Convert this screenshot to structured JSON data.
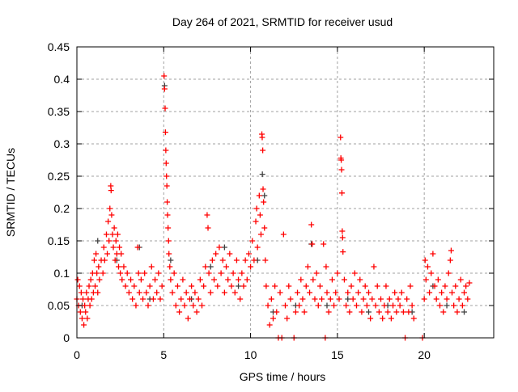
{
  "chart_data": {
    "type": "scatter",
    "title": "Day 264 of 2021, SRMTID for receiver usud",
    "xlabel": "GPS time / hours",
    "ylabel": "SRMTID / TECUs",
    "xlim": [
      0,
      24
    ],
    "ylim": [
      0,
      0.45
    ],
    "xticks": [
      0,
      5,
      10,
      15,
      20
    ],
    "yticks": [
      0,
      0.05,
      0.1,
      0.15,
      0.2,
      0.25,
      0.3,
      0.35,
      0.4,
      0.45
    ],
    "ytick_labels": [
      "0",
      "0.05",
      "0.1",
      "0.15",
      "0.2",
      "0.25",
      "0.3",
      "0.35",
      "0.4",
      "0.45"
    ],
    "grid": true,
    "series": [
      {
        "name": "primary",
        "color": "#ff0000",
        "points": [
          [
            0.0,
            0.06
          ],
          [
            0.05,
            0.09
          ],
          [
            0.1,
            0.05
          ],
          [
            0.15,
            0.08
          ],
          [
            0.2,
            0.04
          ],
          [
            0.25,
            0.07
          ],
          [
            0.3,
            0.03
          ],
          [
            0.35,
            0.06
          ],
          [
            0.4,
            0.02
          ],
          [
            0.45,
            0.05
          ],
          [
            0.5,
            0.04
          ],
          [
            0.55,
            0.07
          ],
          [
            0.6,
            0.03
          ],
          [
            0.65,
            0.06
          ],
          [
            0.7,
            0.08
          ],
          [
            0.75,
            0.05
          ],
          [
            0.8,
            0.09
          ],
          [
            0.85,
            0.06
          ],
          [
            0.9,
            0.1
          ],
          [
            0.95,
            0.07
          ],
          [
            1.0,
            0.12
          ],
          [
            1.05,
            0.08
          ],
          [
            1.1,
            0.13
          ],
          [
            1.15,
            0.1
          ],
          [
            1.2,
            0.07
          ],
          [
            1.25,
            0.11
          ],
          [
            1.3,
            0.09
          ],
          [
            1.4,
            0.12
          ],
          [
            1.5,
            0.1
          ],
          [
            1.55,
            0.14
          ],
          [
            1.6,
            0.12
          ],
          [
            1.7,
            0.16
          ],
          [
            1.75,
            0.13
          ],
          [
            1.8,
            0.18
          ],
          [
            1.85,
            0.15
          ],
          [
            1.9,
            0.2
          ],
          [
            1.95,
            0.235
          ],
          [
            1.97,
            0.228
          ],
          [
            2.0,
            0.19
          ],
          [
            2.05,
            0.16
          ],
          [
            2.1,
            0.14
          ],
          [
            2.15,
            0.17
          ],
          [
            2.2,
            0.12
          ],
          [
            2.25,
            0.15
          ],
          [
            2.3,
            0.13
          ],
          [
            2.35,
            0.16
          ],
          [
            2.4,
            0.11
          ],
          [
            2.45,
            0.14
          ],
          [
            2.5,
            0.1
          ],
          [
            2.55,
            0.13
          ],
          [
            2.6,
            0.09
          ],
          [
            2.7,
            0.11
          ],
          [
            2.8,
            0.08
          ],
          [
            2.9,
            0.1
          ],
          [
            3.0,
            0.07
          ],
          [
            3.1,
            0.09
          ],
          [
            3.2,
            0.06
          ],
          [
            3.3,
            0.08
          ],
          [
            3.4,
            0.05
          ],
          [
            3.5,
            0.14
          ],
          [
            3.55,
            0.1
          ],
          [
            3.6,
            0.07
          ],
          [
            3.7,
            0.09
          ],
          [
            3.8,
            0.06
          ],
          [
            3.9,
            0.1
          ],
          [
            4.0,
            0.07
          ],
          [
            4.1,
            0.05
          ],
          [
            4.2,
            0.08
          ],
          [
            4.3,
            0.11
          ],
          [
            4.4,
            0.06
          ],
          [
            4.5,
            0.09
          ],
          [
            4.6,
            0.07
          ],
          [
            4.7,
            0.1
          ],
          [
            4.8,
            0.06
          ],
          [
            4.9,
            0.08
          ],
          [
            5.02,
            0.405
          ],
          [
            5.05,
            0.385
          ],
          [
            5.08,
            0.355
          ],
          [
            5.1,
            0.318
          ],
          [
            5.12,
            0.29
          ],
          [
            5.14,
            0.27
          ],
          [
            5.16,
            0.25
          ],
          [
            5.18,
            0.235
          ],
          [
            5.2,
            0.21
          ],
          [
            5.22,
            0.19
          ],
          [
            5.25,
            0.17
          ],
          [
            5.28,
            0.15
          ],
          [
            5.3,
            0.13
          ],
          [
            5.35,
            0.11
          ],
          [
            5.4,
            0.09
          ],
          [
            5.5,
            0.07
          ],
          [
            5.6,
            0.1
          ],
          [
            5.7,
            0.05
          ],
          [
            5.8,
            0.08
          ],
          [
            5.9,
            0.04
          ],
          [
            6.0,
            0.06
          ],
          [
            6.1,
            0.09
          ],
          [
            6.2,
            0.05
          ],
          [
            6.3,
            0.07
          ],
          [
            6.4,
            0.03
          ],
          [
            6.5,
            0.06
          ],
          [
            6.6,
            0.08
          ],
          [
            6.7,
            0.05
          ],
          [
            6.8,
            0.07
          ],
          [
            6.9,
            0.04
          ],
          [
            7.0,
            0.06
          ],
          [
            7.1,
            0.09
          ],
          [
            7.2,
            0.05
          ],
          [
            7.3,
            0.08
          ],
          [
            7.4,
            0.11
          ],
          [
            7.5,
            0.19
          ],
          [
            7.55,
            0.17
          ],
          [
            7.6,
            0.1
          ],
          [
            7.7,
            0.07
          ],
          [
            7.8,
            0.12
          ],
          [
            7.9,
            0.09
          ],
          [
            8.0,
            0.13
          ],
          [
            8.1,
            0.08
          ],
          [
            8.2,
            0.14
          ],
          [
            8.3,
            0.1
          ],
          [
            8.4,
            0.12
          ],
          [
            8.5,
            0.07
          ],
          [
            8.6,
            0.11
          ],
          [
            8.7,
            0.09
          ],
          [
            8.8,
            0.13
          ],
          [
            8.9,
            0.08
          ],
          [
            9.0,
            0.1
          ],
          [
            9.1,
            0.07
          ],
          [
            9.2,
            0.12
          ],
          [
            9.3,
            0.09
          ],
          [
            9.4,
            0.06
          ],
          [
            9.5,
            0.1
          ],
          [
            9.6,
            0.08
          ],
          [
            9.7,
            0.12
          ],
          [
            9.8,
            0.09
          ],
          [
            9.9,
            0.13
          ],
          [
            10.0,
            0.11
          ],
          [
            10.1,
            0.15
          ],
          [
            10.2,
            0.12
          ],
          [
            10.3,
            0.18
          ],
          [
            10.35,
            0.2
          ],
          [
            10.4,
            0.14
          ],
          [
            10.5,
            0.22
          ],
          [
            10.55,
            0.19
          ],
          [
            10.6,
            0.16
          ],
          [
            10.65,
            0.315
          ],
          [
            10.67,
            0.31
          ],
          [
            10.7,
            0.29
          ],
          [
            10.72,
            0.23
          ],
          [
            10.75,
            0.21
          ],
          [
            10.8,
            0.17
          ],
          [
            10.85,
            0.12
          ],
          [
            10.9,
            0.08
          ],
          [
            11.0,
            0.05
          ],
          [
            11.1,
            0.02
          ],
          [
            11.2,
            0.06
          ],
          [
            11.3,
            0.03
          ],
          [
            11.4,
            0.08
          ],
          [
            11.5,
            0.04
          ],
          [
            11.6,
            0.0
          ],
          [
            11.7,
            0.07
          ],
          [
            11.8,
            0.0
          ],
          [
            11.9,
            0.16
          ],
          [
            12.0,
            0.05
          ],
          [
            12.1,
            0.03
          ],
          [
            12.2,
            0.08
          ],
          [
            12.3,
            0.06
          ],
          [
            12.5,
            0.0
          ],
          [
            12.6,
            0.04
          ],
          [
            12.7,
            0.07
          ],
          [
            12.8,
            0.05
          ],
          [
            12.9,
            0.09
          ],
          [
            13.0,
            0.06
          ],
          [
            13.1,
            0.04
          ],
          [
            13.2,
            0.08
          ],
          [
            13.3,
            0.11
          ],
          [
            13.4,
            0.07
          ],
          [
            13.5,
            0.175
          ],
          [
            13.55,
            0.145
          ],
          [
            13.6,
            0.09
          ],
          [
            13.7,
            0.06
          ],
          [
            13.8,
            0.1
          ],
          [
            13.9,
            0.05
          ],
          [
            14.0,
            0.08
          ],
          [
            14.1,
            0.06
          ],
          [
            14.2,
            0.145
          ],
          [
            14.3,
            0.0
          ],
          [
            14.35,
            0.11
          ],
          [
            14.4,
            0.07
          ],
          [
            14.5,
            0.04
          ],
          [
            14.6,
            0.06
          ],
          [
            14.7,
            0.09
          ],
          [
            14.8,
            0.05
          ],
          [
            14.9,
            0.07
          ],
          [
            15.0,
            0.1
          ],
          [
            15.1,
            0.06
          ],
          [
            15.18,
            0.31
          ],
          [
            15.2,
            0.278
          ],
          [
            15.22,
            0.275
          ],
          [
            15.24,
            0.26
          ],
          [
            15.26,
            0.224
          ],
          [
            15.28,
            0.165
          ],
          [
            15.3,
            0.155
          ],
          [
            15.32,
            0.133
          ],
          [
            15.4,
            0.09
          ],
          [
            15.5,
            0.05
          ],
          [
            15.6,
            0.07
          ],
          [
            15.7,
            0.04
          ],
          [
            15.8,
            0.08
          ],
          [
            15.9,
            0.06
          ],
          [
            16.0,
            0.1
          ],
          [
            16.1,
            0.05
          ],
          [
            16.2,
            0.07
          ],
          [
            16.3,
            0.09
          ],
          [
            16.4,
            0.04
          ],
          [
            16.5,
            0.06
          ],
          [
            16.6,
            0.08
          ],
          [
            16.7,
            0.05
          ],
          [
            16.8,
            0.07
          ],
          [
            16.9,
            0.03
          ],
          [
            17.0,
            0.06
          ],
          [
            17.1,
            0.11
          ],
          [
            17.2,
            0.05
          ],
          [
            17.3,
            0.08
          ],
          [
            17.4,
            0.04
          ],
          [
            17.5,
            0.06
          ],
          [
            17.6,
            0.03
          ],
          [
            17.7,
            0.05
          ],
          [
            17.8,
            0.08
          ],
          [
            17.9,
            0.04
          ],
          [
            18.0,
            0.06
          ],
          [
            18.1,
            0.03
          ],
          [
            18.2,
            0.05
          ],
          [
            18.3,
            0.07
          ],
          [
            18.4,
            0.04
          ],
          [
            18.5,
            0.06
          ],
          [
            18.6,
            0.05
          ],
          [
            18.7,
            0.07
          ],
          [
            18.8,
            0.04
          ],
          [
            18.9,
            0.0
          ],
          [
            19.0,
            0.06
          ],
          [
            19.1,
            0.04
          ],
          [
            19.2,
            0.08
          ],
          [
            19.3,
            0.05
          ],
          [
            19.4,
            0.03
          ],
          [
            19.9,
            0.0
          ],
          [
            20.0,
            0.06
          ],
          [
            20.05,
            0.12
          ],
          [
            20.1,
            0.09
          ],
          [
            20.2,
            0.11
          ],
          [
            20.3,
            0.07
          ],
          [
            20.4,
            0.1
          ],
          [
            20.5,
            0.13
          ],
          [
            20.6,
            0.08
          ],
          [
            20.7,
            0.06
          ],
          [
            20.8,
            0.09
          ],
          [
            20.9,
            0.05
          ],
          [
            21.0,
            0.07
          ],
          [
            21.1,
            0.04
          ],
          [
            21.2,
            0.08
          ],
          [
            21.3,
            0.06
          ],
          [
            21.4,
            0.1
          ],
          [
            21.5,
            0.12
          ],
          [
            21.55,
            0.135
          ],
          [
            21.6,
            0.07
          ],
          [
            21.7,
            0.05
          ],
          [
            21.8,
            0.08
          ],
          [
            21.9,
            0.04
          ],
          [
            22.0,
            0.06
          ],
          [
            22.1,
            0.09
          ],
          [
            22.2,
            0.05
          ],
          [
            22.3,
            0.07
          ],
          [
            22.4,
            0.08
          ],
          [
            22.5,
            0.06
          ],
          [
            22.6,
            0.085
          ]
        ]
      },
      {
        "name": "secondary",
        "color": "#404040",
        "points": [
          [
            0.3,
            0.05
          ],
          [
            1.2,
            0.15
          ],
          [
            2.3,
            0.12
          ],
          [
            3.6,
            0.14
          ],
          [
            4.2,
            0.06
          ],
          [
            5.05,
            0.39
          ],
          [
            5.4,
            0.12
          ],
          [
            6.6,
            0.06
          ],
          [
            7.7,
            0.11
          ],
          [
            8.5,
            0.14
          ],
          [
            9.3,
            0.08
          ],
          [
            10.4,
            0.12
          ],
          [
            10.68,
            0.253
          ],
          [
            10.8,
            0.22
          ],
          [
            11.3,
            0.04
          ],
          [
            12.6,
            0.05
          ],
          [
            13.5,
            0.145
          ],
          [
            14.4,
            0.05
          ],
          [
            15.6,
            0.06
          ],
          [
            16.8,
            0.04
          ],
          [
            17.9,
            0.05
          ],
          [
            19.3,
            0.04
          ],
          [
            20.5,
            0.08
          ],
          [
            21.3,
            0.05
          ],
          [
            22.3,
            0.04
          ]
        ]
      }
    ]
  }
}
